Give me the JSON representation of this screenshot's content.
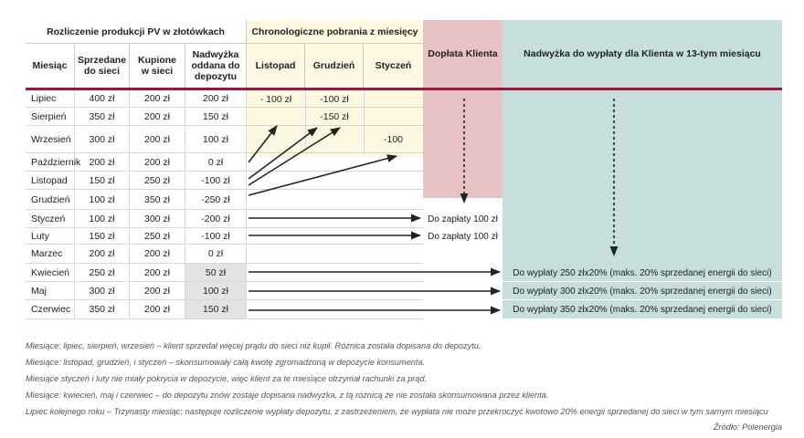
{
  "headers": {
    "group1": "Rozliczenie produkcji PV w złotówkach",
    "group2": "Chronologiczne pobrania z miesięcy",
    "doplata": "Dopłata Klienta",
    "nadwyzka": "Nadwyżka do wypłaty dla Klienta w 13-tym miesiącu",
    "miesiac": "Miesiąc",
    "sprzedane": "Sprzedane do sieci",
    "kupione": "Kupione w sieci",
    "nadwyzka_dep": "Nadwyżka oddana do depozytu",
    "listopad": "Listopad",
    "grudzien": "Grudzień",
    "styczen": "Styczeń"
  },
  "rows": [
    {
      "month": "Lipiec",
      "sold": "400 zł",
      "bought": "200 zł",
      "surplus": "200 zł"
    },
    {
      "month": "Sierpień",
      "sold": "350 zł",
      "bought": "200 zł",
      "surplus": "150 zł"
    },
    {
      "month": "Wrzesień",
      "sold": "300 zł",
      "bought": "200 zł",
      "surplus": "100 zł"
    },
    {
      "month": "Październik",
      "sold": "200 zł",
      "bought": "200 zł",
      "surplus": "0 zł"
    },
    {
      "month": "Listopad",
      "sold": "150 zł",
      "bought": "250 zł",
      "surplus": "-100 zł"
    },
    {
      "month": "Grudzień",
      "sold": "100 zł",
      "bought": "350 zł",
      "surplus": "-250 zł"
    },
    {
      "month": "Styczeń",
      "sold": "100 zł",
      "bought": "300 zł",
      "surplus": "-200 zł"
    },
    {
      "month": "Luty",
      "sold": "150 zł",
      "bought": "250 zł",
      "surplus": "-100 zł"
    },
    {
      "month": "Marzec",
      "sold": "200 zł",
      "bought": "200 zł",
      "surplus": "0 zł"
    },
    {
      "month": "Kwiecień",
      "sold": "250 zł",
      "bought": "200 zł",
      "surplus": "50 zł"
    },
    {
      "month": "Maj",
      "sold": "300 zł",
      "bought": "200 zł",
      "surplus": "100 zł"
    },
    {
      "month": "Czerwiec",
      "sold": "350 zł",
      "bought": "200 zł",
      "surplus": "150 zł"
    }
  ],
  "withdrawals": {
    "lipiec_listopad": "- 100 zł",
    "lipiec_grudzien": "-100 zł",
    "sierpien_grudzien": "-150 zł",
    "wrzesien_styczen": "-100"
  },
  "doplata": {
    "styczen": "Do zapłaty 100 zł",
    "luty": "Do zapłaty 100 zł"
  },
  "payout": {
    "kwiecien": "Do wypłaty 250 złx20%  (maks. 20% sprzedanej energii do sieci)",
    "maj": "Do wypłaty 300 złx20%  (maks. 20% sprzedanej energii do sieci)",
    "czerwiec": "Do wypłaty 350 złx20%  (maks. 20% sprzedanej energii do sieci)"
  },
  "notes": [
    "Miesiące: lipiec, sierpień, wrzesień – klient sprzedał więcej prądu do sieci niż kupił. Różnica została dopisana do depozytu.",
    "Miesiące: listopad, grudzień, i styczeń – skonsumowały całą kwotę zgromadzoną w depozycie konsumenta.",
    "Miesiące styczeń i luty nie miały pokrycia w depozycie, więc klient za te miesiące otrzymał rachunki za prąd.",
    "Miesiące: kwiecień, maj i czerwiec – do depozytu znów zostaje dopisana nadwyżka, z tą różnicą że nie została skonsumowana przez klienta.",
    "Lipiec kolejnego roku – Trzynasty miesiąc; następuje rozliczenie wypłaty depozytu, z zastrzeżeniem, że wypłata nie może przekroczyć kwotowo 20% energii sprzedanej do sieci w tym samym miesiącu"
  ],
  "source": "Źródło: Polenergia",
  "colors": {
    "yellow": "#fdf8e1",
    "pink": "#e8c3c3",
    "teal": "#c6dfdc",
    "redline": "#8c1f3d",
    "graycell": "#e3e3e3"
  }
}
